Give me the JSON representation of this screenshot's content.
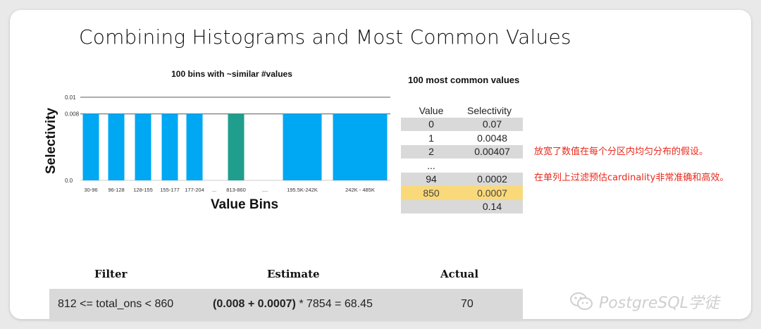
{
  "title": "Combining Histograms and Most Common Values",
  "chart_data": {
    "type": "bar",
    "title": "100 bins with ~similar #values",
    "xlabel": "Value Bins",
    "ylabel": "Selectivity",
    "y_ticks": [
      "0.01",
      "0.008",
      "0.0"
    ],
    "reference_lines": [
      0.01,
      0.008
    ],
    "ylim": [
      0,
      0.01
    ],
    "categories": [
      "30-96",
      "96-128",
      "128-155",
      "155-177",
      "177-204",
      "...",
      "813-860",
      "....",
      "195.5K-242K",
      "242K - 485K"
    ],
    "values": [
      0.008,
      0.008,
      0.008,
      0.008,
      0.008,
      null,
      0.008,
      null,
      0.008,
      0.008
    ],
    "colors": {
      "bar": "#00a7f3",
      "highlight": "#1f9e8e",
      "line": "#7a7a7a"
    },
    "highlight_category": "813-860"
  },
  "mcv": {
    "title": "100 most common values",
    "headers": [
      "Value",
      "Selectivity"
    ],
    "rows": [
      {
        "value": "0",
        "selectivity": "0.07",
        "style": "shade"
      },
      {
        "value": "1",
        "selectivity": "0.0048",
        "style": ""
      },
      {
        "value": "2",
        "selectivity": "0.00407",
        "style": "shade"
      },
      {
        "value": "...",
        "selectivity": "",
        "style": ""
      },
      {
        "value": "94",
        "selectivity": "0.0002",
        "style": "shade"
      },
      {
        "value": "850",
        "selectivity": "0.0007",
        "style": "hl"
      },
      {
        "value": "",
        "selectivity": "0.14",
        "style": "shade"
      }
    ]
  },
  "notes": {
    "line1": "放宽了数值在每个分区内均匀分布的假设。",
    "line2": "在单列上过滤预估cardinality非常准确和高效。"
  },
  "filter_table": {
    "headers": {
      "filter": "Filter",
      "estimate": "Estimate",
      "actual": "Actual"
    },
    "row": {
      "filter": "812 <= total_ons  < 860",
      "estimate_bold": "(0.008 + 0.0007)",
      "estimate_rest": " * 7854 = 68.45",
      "actual": "70"
    }
  },
  "watermark": {
    "text": "PostgreSQL学徒",
    "icon": "wechat-icon"
  }
}
